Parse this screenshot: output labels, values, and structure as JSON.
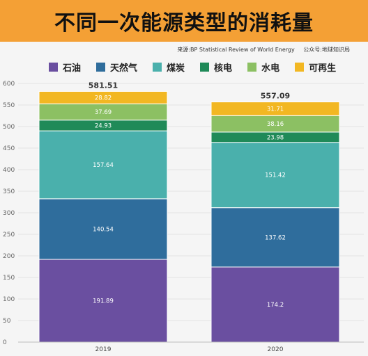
{
  "title": "不同一次能源类型的消耗量",
  "source": "来源:BP Statistical Review of World Energy",
  "account": "公众号:地球知识局",
  "legend": [
    {
      "name": "石油",
      "color": "#6a4fa0"
    },
    {
      "name": "天然气",
      "color": "#2f6d9c"
    },
    {
      "name": "煤炭",
      "color": "#4ab0ac"
    },
    {
      "name": "核电",
      "color": "#1f8a58"
    },
    {
      "name": "水电",
      "color": "#8cc063"
    },
    {
      "name": "可再生",
      "color": "#f2b722"
    }
  ],
  "chart_data": {
    "type": "bar",
    "stacked": true,
    "categories": [
      "2019",
      "2020"
    ],
    "series": [
      {
        "name": "石油",
        "color": "#6a4fa0",
        "values": [
          191.89,
          174.2
        ],
        "labels": [
          "191.89",
          "174.2"
        ]
      },
      {
        "name": "天然气",
        "color": "#2f6d9c",
        "values": [
          140.54,
          137.62
        ],
        "labels": [
          "140.54",
          "137.62"
        ]
      },
      {
        "name": "煤炭",
        "color": "#4ab0ac",
        "values": [
          157.64,
          151.42
        ],
        "labels": [
          "157.64",
          "151.42"
        ]
      },
      {
        "name": "核电",
        "color": "#1f8a58",
        "values": [
          24.93,
          23.98
        ],
        "labels": [
          "24.93",
          "23.98"
        ]
      },
      {
        "name": "水电",
        "color": "#8cc063",
        "values": [
          37.69,
          38.16
        ],
        "labels": [
          "37.69",
          "38.16"
        ]
      },
      {
        "name": "可再生",
        "color": "#f2b722",
        "values": [
          28.82,
          31.71
        ],
        "labels": [
          "28.82",
          "31.71"
        ]
      }
    ],
    "totals": [
      "581.51",
      "557.09"
    ],
    "ylim": [
      0,
      600
    ],
    "yticks": [
      0,
      50,
      100,
      150,
      200,
      250,
      300,
      350,
      400,
      450,
      500,
      550,
      600
    ],
    "grid": true
  }
}
